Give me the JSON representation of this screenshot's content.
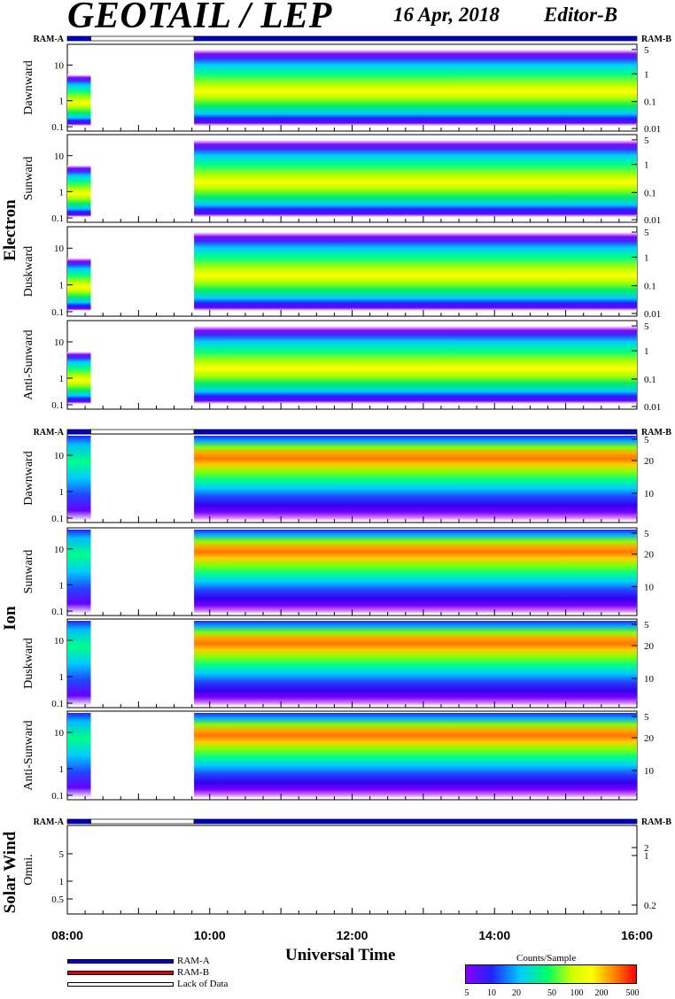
{
  "header": {
    "title": "GEOTAIL / LEP",
    "date": "16 Apr, 2018",
    "editor": "Editor-B"
  },
  "colors": {
    "ram_a": "#0000cc",
    "ram_b": "#dd0000",
    "lack_of_data": "#ffffff",
    "panel_background": "#ffffff"
  },
  "chart_data": {
    "type": "heatmap",
    "xlabel": "Universal Time",
    "x_ticks": [
      "08:00",
      "10:00",
      "12:00",
      "14:00",
      "16:00"
    ],
    "x_range_hours": [
      8,
      16
    ],
    "data_coverage": [
      {
        "start": 8.0,
        "end": 8.33,
        "status": "data",
        "mode": "RAM-A"
      },
      {
        "start": 8.33,
        "end": 9.78,
        "status": "Lack of Data"
      },
      {
        "start": 9.78,
        "end": 16.0,
        "status": "data",
        "mode": "RAM-A"
      }
    ],
    "mode_bar_labels": {
      "left": "RAM-A",
      "right": "RAM-B"
    },
    "groups": [
      {
        "name": "Electron",
        "panels": [
          {
            "label": "Dawnward",
            "left_ticks": [
              "10",
              "1",
              "0.1"
            ],
            "right_ticks": [
              "5",
              "1",
              "0.1",
              "0.01"
            ]
          },
          {
            "label": "Sunward",
            "left_ticks": [
              "10",
              "1",
              "0.1"
            ],
            "right_ticks": [
              "5",
              "1",
              "0.1",
              "0.01"
            ]
          },
          {
            "label": "Duskward",
            "left_ticks": [
              "10",
              "1",
              "0.1"
            ],
            "right_ticks": [
              "5",
              "1",
              "0.1",
              "0.01"
            ]
          },
          {
            "label": "Anti-Sunward",
            "left_ticks": [
              "10",
              "1",
              "0.1"
            ],
            "right_ticks": [
              "5",
              "1",
              "0.1",
              "0.01"
            ]
          }
        ]
      },
      {
        "name": "Ion",
        "panels": [
          {
            "label": "Dawnward",
            "left_ticks": [
              "10",
              "1",
              "0.1"
            ],
            "right_ticks": [
              "20",
              "10",
              "5"
            ]
          },
          {
            "label": "Sunward",
            "left_ticks": [
              "10",
              "1",
              "0.1"
            ],
            "right_ticks": [
              "20",
              "10",
              "5"
            ]
          },
          {
            "label": "Duskward",
            "left_ticks": [
              "10",
              "1",
              "0.1"
            ],
            "right_ticks": [
              "20",
              "10",
              "5"
            ]
          },
          {
            "label": "Anti-Sunward",
            "left_ticks": [
              "10",
              "1",
              "0.1"
            ],
            "right_ticks": [
              "20",
              "10",
              "5"
            ]
          }
        ]
      },
      {
        "name": "Solar Wind",
        "panels": [
          {
            "label": "Omni.",
            "left_ticks": [
              "5",
              "1",
              "0.5"
            ],
            "right_ticks": [
              "2",
              "1",
              "0.2"
            ]
          }
        ]
      }
    ],
    "colorbar": {
      "title": "Counts/Sample",
      "ticks": [
        "5",
        "10",
        "20",
        "50",
        "100",
        "200",
        "500"
      ],
      "scale": "log",
      "range": [
        5,
        500
      ]
    },
    "legend": [
      {
        "label": "RAM-A",
        "color": "#0000cc"
      },
      {
        "label": "RAM-B",
        "color": "#dd0000"
      },
      {
        "label": "Lack of Data",
        "color": "#ffffff"
      }
    ]
  }
}
